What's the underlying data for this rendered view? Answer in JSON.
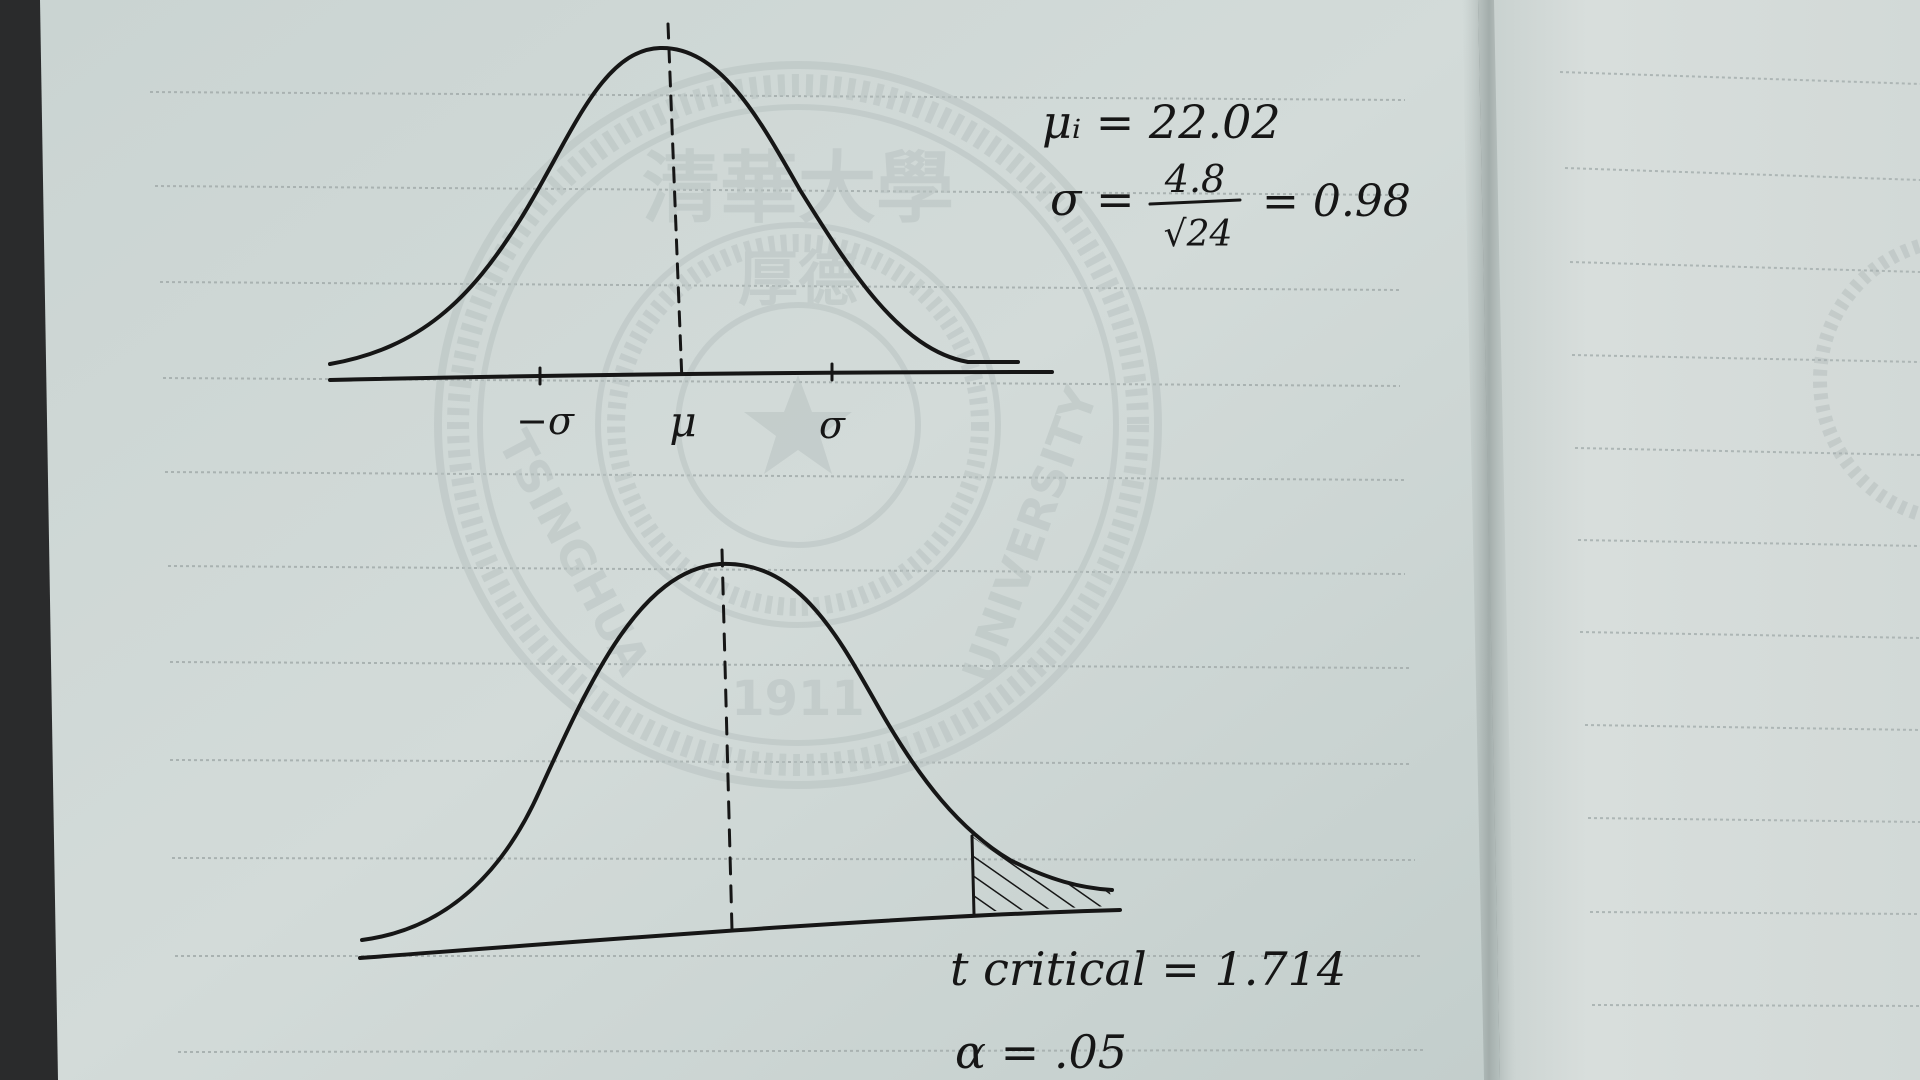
{
  "photo": {
    "subject": "notebook-sketch",
    "colors": {
      "paper_left": "#cfd8d6",
      "paper_right": "#d6dcda",
      "ruled_line": "#a9b2b1",
      "ink": "#161616",
      "watermark": "#b9c3c2",
      "background": "#2a2b2c"
    }
  },
  "watermark": {
    "top_text": "清華大學",
    "center_text": "厚德",
    "left_text": "TSINGHUA",
    "right_text": "UNIVERSITY",
    "year": "1911"
  },
  "notes": {
    "mu_line": "μᵢ = 22.02",
    "sigma_label": "σ =",
    "sigma_numerator": "4.8",
    "sigma_denominator": "√24",
    "sigma_result": "= 0.98",
    "t_critical": "t critical = 1.714",
    "alpha": "α = .05"
  },
  "top_curve": {
    "tick_neg_sigma": "−σ",
    "tick_mu": "μ",
    "tick_sigma": "σ"
  },
  "bottom_curve": {
    "shaded_tail": "right"
  }
}
